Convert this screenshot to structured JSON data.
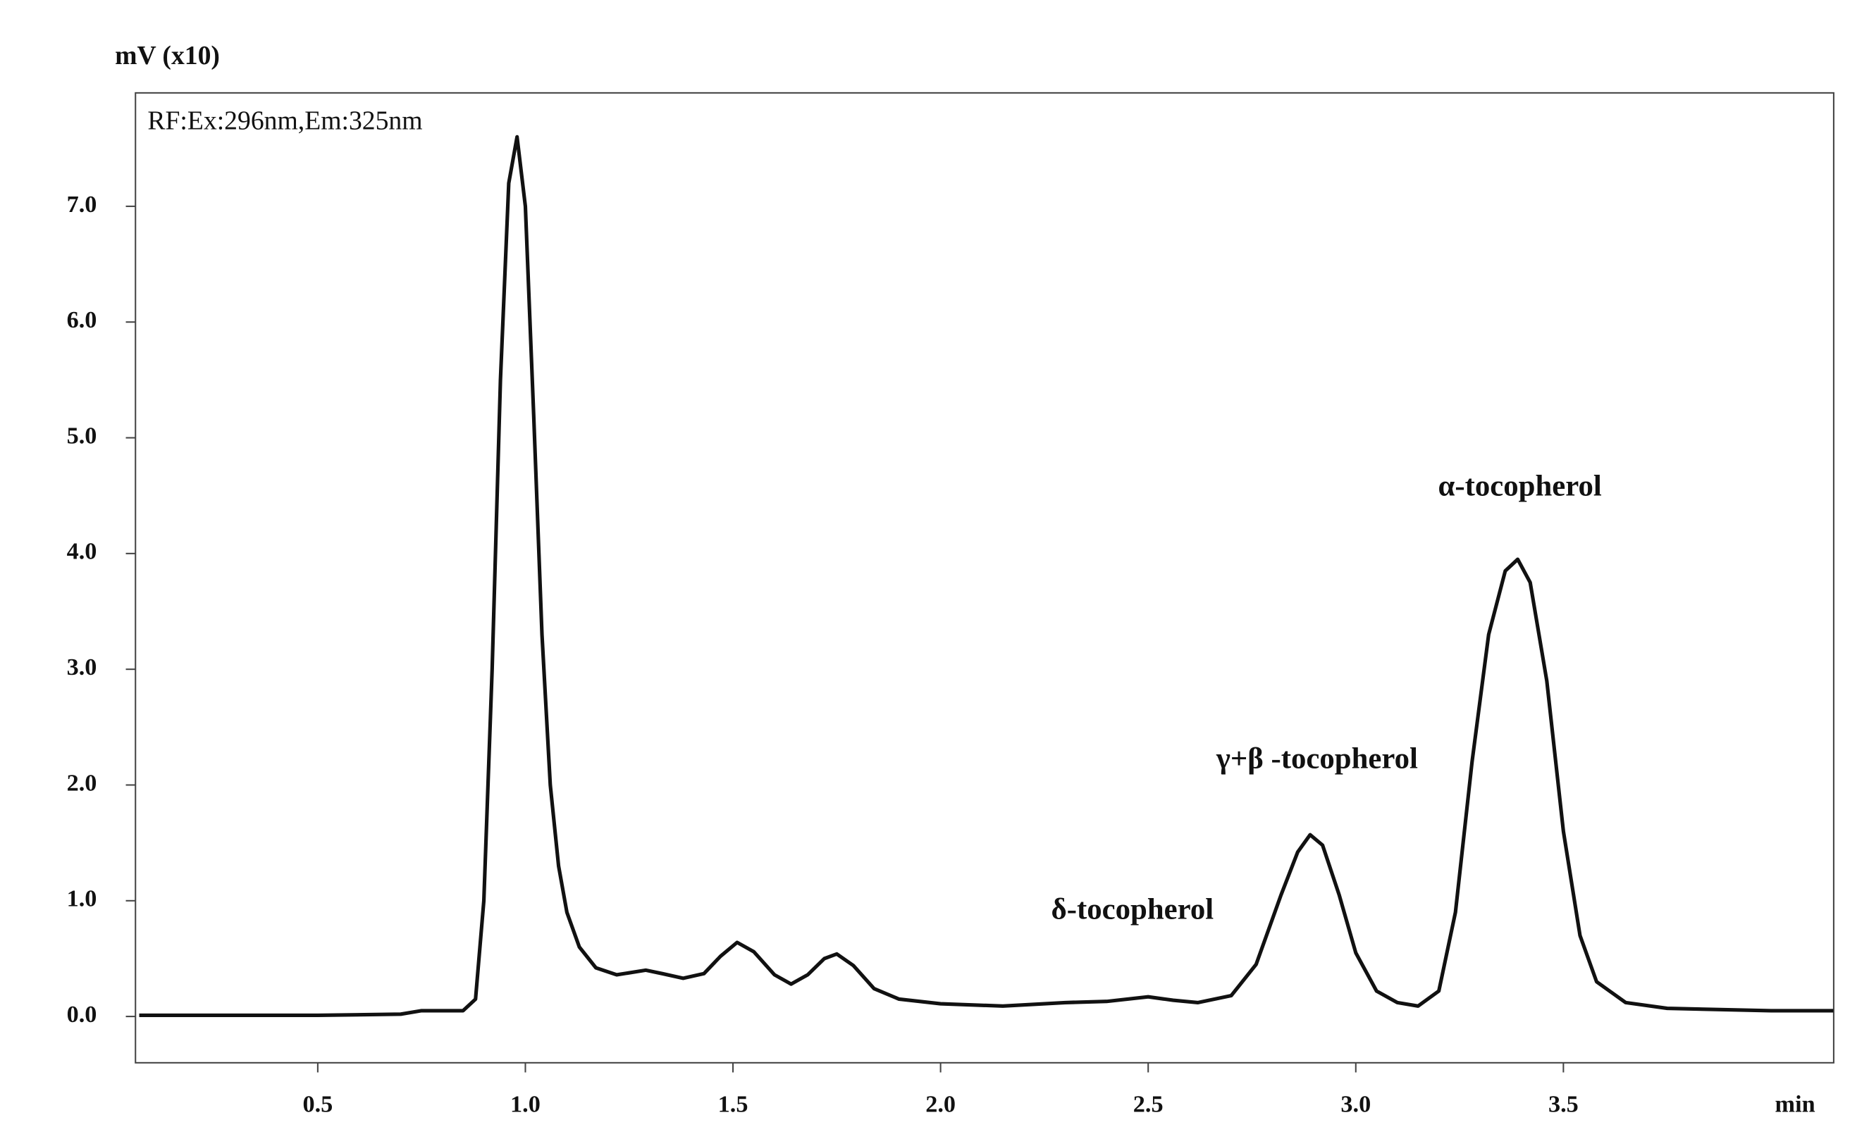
{
  "chart_data": {
    "type": "line",
    "y_label": "mV (x10)",
    "x_label": "min",
    "annotations": [
      "RF:Ex:296nm,Em:325nm",
      "δ-tocopherol",
      "γ+β -tocopherol",
      "α-tocopherol"
    ],
    "x": [
      0.07,
      0.5,
      0.7,
      0.75,
      0.85,
      0.88,
      0.9,
      0.92,
      0.94,
      0.96,
      0.98,
      1.0,
      1.02,
      1.04,
      1.06,
      1.08,
      1.1,
      1.13,
      1.17,
      1.22,
      1.29,
      1.33,
      1.38,
      1.43,
      1.47,
      1.51,
      1.55,
      1.6,
      1.64,
      1.68,
      1.72,
      1.75,
      1.79,
      1.84,
      1.9,
      2.0,
      2.15,
      2.3,
      2.4,
      2.5,
      2.56,
      2.62,
      2.7,
      2.76,
      2.82,
      2.86,
      2.89,
      2.92,
      2.96,
      3.0,
      3.05,
      3.1,
      3.15,
      3.2,
      3.24,
      3.28,
      3.32,
      3.36,
      3.39,
      3.42,
      3.46,
      3.5,
      3.54,
      3.58,
      3.65,
      3.75,
      4.0,
      4.15
    ],
    "series": [
      {
        "color": "#111111",
        "values": [
          0.01,
          0.01,
          0.02,
          0.05,
          0.05,
          0.15,
          1.0,
          3.0,
          5.5,
          7.2,
          7.6,
          7.0,
          5.2,
          3.3,
          2.0,
          1.3,
          0.9,
          0.6,
          0.42,
          0.36,
          0.4,
          0.37,
          0.33,
          0.37,
          0.52,
          0.64,
          0.56,
          0.36,
          0.28,
          0.36,
          0.5,
          0.54,
          0.44,
          0.24,
          0.15,
          0.11,
          0.09,
          0.12,
          0.13,
          0.17,
          0.14,
          0.12,
          0.18,
          0.45,
          1.05,
          1.42,
          1.57,
          1.48,
          1.05,
          0.55,
          0.22,
          0.12,
          0.09,
          0.22,
          0.9,
          2.2,
          3.3,
          3.85,
          3.95,
          3.75,
          2.9,
          1.6,
          0.7,
          0.3,
          0.12,
          0.07,
          0.05,
          0.05
        ]
      }
    ],
    "xlim": [
      0.061,
      4.151
    ],
    "ylim": [
      -0.4,
      7.98
    ],
    "xticks": [
      0.5,
      {
        "value": 1.0,
        "label": "1.0"
      },
      1.5,
      {
        "value": 2.0,
        "label": "2.0"
      },
      2.5,
      {
        "value": 3.0,
        "label": "3.0"
      },
      3.5
    ],
    "yticks": [
      {
        "value": 0,
        "label": "0.0"
      },
      {
        "value": 1,
        "label": "1.0"
      },
      {
        "value": 2,
        "label": "2.0"
      },
      {
        "value": 3,
        "label": "3.0"
      },
      {
        "value": 4,
        "label": "4.0"
      },
      {
        "value": 5,
        "label": "5.0"
      },
      {
        "value": 6,
        "label": "6.0"
      },
      {
        "value": 7,
        "label": "7.0"
      }
    ]
  }
}
